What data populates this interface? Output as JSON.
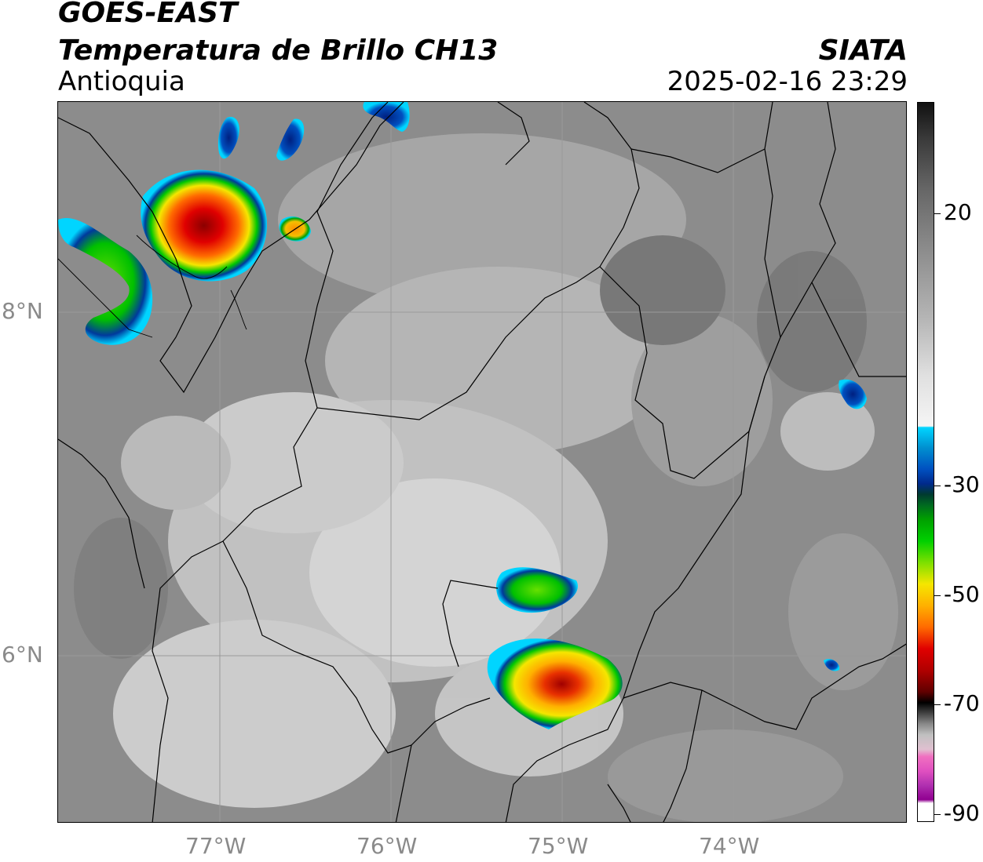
{
  "header": {
    "satellite": "GOES-EAST",
    "product": "Temperatura de Brillo CH13",
    "region": "Antioquia",
    "agency": "SIATA",
    "timestamp": "2025-02-16 23:29"
  },
  "map": {
    "lat_labels": [
      "8°N",
      "6°N"
    ],
    "lon_labels": [
      "77°W",
      "76°W",
      "75°W",
      "74°W"
    ]
  },
  "colorbar": {
    "tick_labels": [
      "20",
      "-30",
      "-50",
      "-70",
      "-90"
    ],
    "colors": {
      "black": "#111111",
      "white": "#f5f5f5",
      "cyan": "#00d5ff",
      "blue": "#003a9c",
      "green": "#00c800",
      "yellow": "#f5e600",
      "orange": "#ff8c00",
      "red": "#e00000",
      "magenta": "#cc44cc"
    }
  }
}
